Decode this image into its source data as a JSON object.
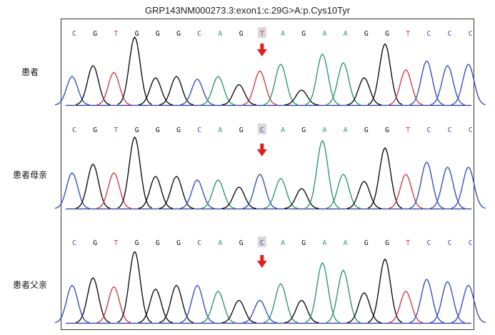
{
  "title": "GRP143NM000273.3:exon1:c.29G>A:p.Cys10Tyr",
  "colors": {
    "C": "#3a4fbf",
    "G": "#111111",
    "T": "#d0404a",
    "A": "#2f9a6a",
    "marker": "#e02020",
    "highlight": "#d9d9d9"
  },
  "chart_data": {
    "type": "line",
    "title": "GRP143NM000273.3:exon1:c.29G>A:p.Cys10Tyr",
    "panels": [
      {
        "label": "患者",
        "bases": [
          "C",
          "G",
          "T",
          "G",
          "G",
          "G",
          "C",
          "A",
          "G",
          "T",
          "A",
          "G",
          "A",
          "A",
          "G",
          "G",
          "T",
          "C",
          "C",
          "C"
        ],
        "highlight_index": 9,
        "peaks": [
          {
            "base": "C",
            "height": 0.42
          },
          {
            "base": "G",
            "height": 0.58
          },
          {
            "base": "T",
            "height": 0.48
          },
          {
            "base": "G",
            "height": 1.0
          },
          {
            "base": "G",
            "height": 0.4
          },
          {
            "base": "G",
            "height": 0.42
          },
          {
            "base": "C",
            "height": 0.38
          },
          {
            "base": "A",
            "height": 0.42
          },
          {
            "base": "G",
            "height": 0.3
          },
          {
            "base": "T",
            "height": 0.5
          },
          {
            "base": "A",
            "height": 0.6
          },
          {
            "base": "G",
            "height": 0.22
          },
          {
            "base": "A",
            "height": 0.75
          },
          {
            "base": "A",
            "height": 0.62
          },
          {
            "base": "G",
            "height": 0.4
          },
          {
            "base": "G",
            "height": 0.9
          },
          {
            "base": "T",
            "height": 0.52
          },
          {
            "base": "C",
            "height": 0.65
          },
          {
            "base": "C",
            "height": 0.58
          },
          {
            "base": "C",
            "height": 0.6
          }
        ]
      },
      {
        "label": "患者母亲",
        "bases": [
          "C",
          "G",
          "T",
          "G",
          "G",
          "G",
          "C",
          "A",
          "G",
          "C",
          "A",
          "G",
          "A",
          "A",
          "G",
          "G",
          "T",
          "C",
          "C",
          "C"
        ],
        "highlight_index": 9,
        "peaks": [
          {
            "base": "C",
            "height": 0.5
          },
          {
            "base": "G",
            "height": 0.62
          },
          {
            "base": "T",
            "height": 0.5
          },
          {
            "base": "G",
            "height": 1.0
          },
          {
            "base": "G",
            "height": 0.45
          },
          {
            "base": "G",
            "height": 0.45
          },
          {
            "base": "C",
            "height": 0.4
          },
          {
            "base": "A",
            "height": 0.4
          },
          {
            "base": "G",
            "height": 0.3
          },
          {
            "base": "C",
            "height": 0.48
          },
          {
            "base": "A",
            "height": 0.42
          },
          {
            "base": "G",
            "height": 0.28
          },
          {
            "base": "A",
            "height": 0.95
          },
          {
            "base": "A",
            "height": 0.48
          },
          {
            "base": "G",
            "height": 0.38
          },
          {
            "base": "G",
            "height": 0.85
          },
          {
            "base": "T",
            "height": 0.48
          },
          {
            "base": "C",
            "height": 0.65
          },
          {
            "base": "C",
            "height": 0.58
          },
          {
            "base": "C",
            "height": 0.58
          }
        ]
      },
      {
        "label": "患者父亲",
        "bases": [
          "C",
          "G",
          "T",
          "G",
          "G",
          "G",
          "C",
          "A",
          "G",
          "C",
          "A",
          "G",
          "A",
          "A",
          "G",
          "G",
          "T",
          "C",
          "C",
          "C"
        ],
        "highlight_index": 9,
        "peaks": [
          {
            "base": "C",
            "height": 0.5
          },
          {
            "base": "G",
            "height": 0.6
          },
          {
            "base": "T",
            "height": 0.48
          },
          {
            "base": "G",
            "height": 0.95
          },
          {
            "base": "G",
            "height": 0.45
          },
          {
            "base": "G",
            "height": 0.5
          },
          {
            "base": "C",
            "height": 0.5
          },
          {
            "base": "A",
            "height": 0.42
          },
          {
            "base": "G",
            "height": 0.3
          },
          {
            "base": "C",
            "height": 0.3
          },
          {
            "base": "A",
            "height": 0.52
          },
          {
            "base": "G",
            "height": 0.3
          },
          {
            "base": "A",
            "height": 0.8
          },
          {
            "base": "A",
            "height": 0.7
          },
          {
            "base": "G",
            "height": 0.4
          },
          {
            "base": "G",
            "height": 0.85
          },
          {
            "base": "T",
            "height": 0.42
          },
          {
            "base": "C",
            "height": 0.58
          },
          {
            "base": "C",
            "height": 0.55
          },
          {
            "base": "C",
            "height": 0.5
          }
        ]
      }
    ]
  }
}
